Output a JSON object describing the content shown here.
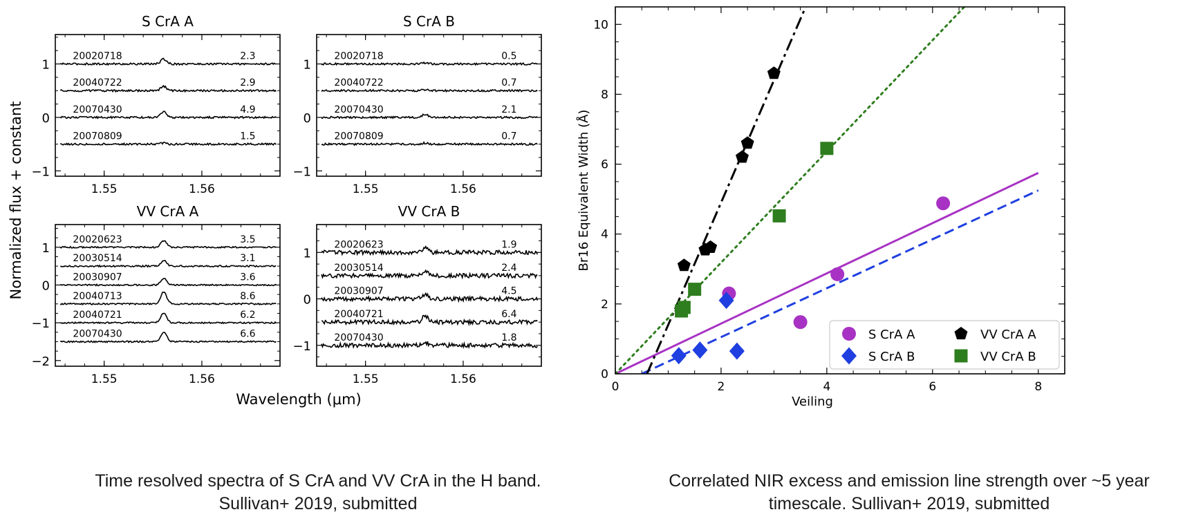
{
  "chart_data": [
    {
      "type": "line",
      "layout": "2x2 grid of spectra panels",
      "title": "",
      "xlabel": "Wavelength (μm)",
      "ylabel": "Normalized flux + constant",
      "xlim": [
        1.545,
        1.568
      ],
      "xticks": [
        "1.55",
        "1.56"
      ],
      "panels": [
        {
          "id": "scra-a",
          "title": "S CrA A",
          "ylim": [
            -1.1,
            1.55
          ],
          "yticks": [
            "1",
            "0",
            "−1"
          ],
          "series": [
            {
              "name": "20020718",
              "offset": 1.0,
              "value": "2.3",
              "line_strength": 0.09
            },
            {
              "name": "20040722",
              "offset": 0.5,
              "value": "2.9",
              "line_strength": 0.08
            },
            {
              "name": "20070430",
              "offset": 0.0,
              "value": "4.9",
              "line_strength": 0.1
            },
            {
              "name": "20070809",
              "offset": -0.5,
              "value": "1.5",
              "line_strength": 0.02
            }
          ]
        },
        {
          "id": "scra-b",
          "title": "S CrA B",
          "ylim": [
            -1.1,
            1.55
          ],
          "yticks": [
            "1",
            "0",
            "−1"
          ],
          "series": [
            {
              "name": "20020718",
              "offset": 1.0,
              "value": "0.5",
              "line_strength": 0.02
            },
            {
              "name": "20040722",
              "offset": 0.5,
              "value": "0.7",
              "line_strength": 0.02
            },
            {
              "name": "20070430",
              "offset": 0.0,
              "value": "2.1",
              "line_strength": 0.06
            },
            {
              "name": "20070809",
              "offset": -0.5,
              "value": "0.7",
              "line_strength": 0.02
            }
          ]
        },
        {
          "id": "vvcra-a",
          "title": "VV CrA A",
          "ylim": [
            -2.15,
            1.6
          ],
          "yticks": [
            "1",
            "0",
            "−1",
            "−2"
          ],
          "series": [
            {
              "name": "20020623",
              "offset": 1.0,
              "value": "3.5",
              "line_strength": 0.17
            },
            {
              "name": "20030514",
              "offset": 0.5,
              "value": "3.1",
              "line_strength": 0.15
            },
            {
              "name": "20030907",
              "offset": 0.0,
              "value": "3.6",
              "line_strength": 0.18
            },
            {
              "name": "20040713",
              "offset": -0.5,
              "value": "8.6",
              "line_strength": 0.32
            },
            {
              "name": "20040721",
              "offset": -1.0,
              "value": "6.2",
              "line_strength": 0.26
            },
            {
              "name": "20070430",
              "offset": -1.5,
              "value": "6.6",
              "line_strength": 0.26
            }
          ]
        },
        {
          "id": "vvcra-b",
          "title": "VV CrA B",
          "ylim": [
            -1.45,
            1.6
          ],
          "yticks": [
            "1",
            "0",
            "−1"
          ],
          "series": [
            {
              "name": "20020623",
              "offset": 1.0,
              "value": "1.9",
              "line_strength": 0.1
            },
            {
              "name": "20030514",
              "offset": 0.5,
              "value": "2.4",
              "line_strength": 0.09
            },
            {
              "name": "20030907",
              "offset": 0.0,
              "value": "4.5",
              "line_strength": 0.1
            },
            {
              "name": "20040721",
              "offset": -0.5,
              "value": "6.4",
              "line_strength": 0.13
            },
            {
              "name": "20070430",
              "offset": -1.0,
              "value": "1.8",
              "line_strength": 0.06
            }
          ]
        }
      ]
    },
    {
      "type": "scatter",
      "title": "",
      "xlabel": "Veiling",
      "ylabel": "Br16 Equivalent Width (Å)",
      "xlim": [
        0,
        8.5
      ],
      "ylim": [
        0,
        10.5
      ],
      "xticks": [
        0,
        2,
        4,
        6,
        8
      ],
      "yticks": [
        0,
        2,
        4,
        6,
        8,
        10
      ],
      "legend_position": "bottom-right",
      "series": [
        {
          "name": "S CrA A",
          "marker": "circle",
          "color": "#a832c4",
          "points": [
            [
              2.15,
              2.3
            ],
            [
              3.5,
              1.48
            ],
            [
              4.2,
              2.85
            ],
            [
              6.2,
              4.88
            ]
          ],
          "fit": {
            "style": "solid",
            "x": [
              0,
              8
            ],
            "y": [
              0,
              5.75
            ]
          }
        },
        {
          "name": "S CrA B",
          "marker": "diamond",
          "color": "#1f3fe0",
          "points": [
            [
              1.2,
              0.52
            ],
            [
              1.6,
              0.68
            ],
            [
              2.1,
              2.1
            ],
            [
              2.3,
              0.65
            ]
          ],
          "fit": {
            "style": "dashed",
            "x": [
              0.5,
              8
            ],
            "y": [
              0,
              5.25
            ]
          }
        },
        {
          "name": "VV CrA A",
          "marker": "pentagon",
          "color": "#000000",
          "points": [
            [
              1.3,
              3.1
            ],
            [
              1.7,
              3.55
            ],
            [
              1.8,
              3.62
            ],
            [
              2.4,
              6.2
            ],
            [
              2.5,
              6.6
            ],
            [
              3.0,
              8.6
            ]
          ],
          "fit": {
            "style": "dash-dot",
            "x": [
              0.6,
              3.6
            ],
            "y": [
              0,
              10.5
            ]
          }
        },
        {
          "name": "VV CrA B",
          "marker": "square",
          "color": "#2e7d1e",
          "points": [
            [
              1.25,
              1.8
            ],
            [
              1.3,
              1.9
            ],
            [
              1.5,
              2.42
            ],
            [
              3.1,
              4.52
            ],
            [
              4.0,
              6.45
            ]
          ],
          "fit": {
            "style": "dotted",
            "x": [
              0,
              6.6
            ],
            "y": [
              0,
              10.5
            ]
          }
        }
      ]
    }
  ],
  "captions": {
    "left": [
      "Time resolved spectra of S CrA and VV CrA in the H band.",
      "Sullivan+ 2019, submitted"
    ],
    "right": [
      "Correlated NIR excess and emission line strength over ~5 year",
      "timescale. Sullivan+ 2019, submitted"
    ]
  }
}
